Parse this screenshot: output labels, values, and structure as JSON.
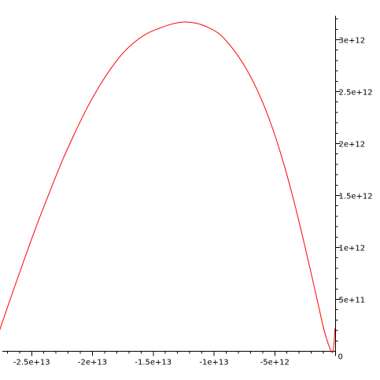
{
  "chart_data": {
    "type": "line",
    "title": "",
    "xlabel": "",
    "ylabel": "",
    "xlim": [
      -28600000000000.0,
      0
    ],
    "ylim": [
      0,
      3200000000000.0
    ],
    "grid": false,
    "legend": "none",
    "colors": {
      "curve": "#ff0000",
      "axis": "#000000"
    },
    "x_ticks": [
      {
        "value": -25000000000000.0,
        "label": "-2.5e+13"
      },
      {
        "value": -20000000000000.0,
        "label": "-2e+13"
      },
      {
        "value": -15000000000000.0,
        "label": "-1.5e+13"
      },
      {
        "value": -10000000000000.0,
        "label": "-1e+13"
      },
      {
        "value": -5000000000000.0,
        "label": "-5e+12"
      },
      {
        "value": 0,
        "label": "0"
      }
    ],
    "y_ticks": [
      {
        "value": 500000000000.0,
        "label": "5e+11"
      },
      {
        "value": 1000000000000.0,
        "label": "1e+12"
      },
      {
        "value": 1500000000000.0,
        "label": "1.5e+12"
      },
      {
        "value": 2000000000000.0,
        "label": "2e+12"
      },
      {
        "value": 2500000000000.0,
        "label": "2.5e+12"
      },
      {
        "value": 3000000000000.0,
        "label": "3e+12"
      }
    ],
    "series": [
      {
        "x": [
          -28200000000000.0,
          -27500000000000.0,
          -26500000000000.0,
          -25500000000000.0,
          -24500000000000.0,
          -23500000000000.0,
          -22500000000000.0,
          -21500000000000.0,
          -20500000000000.0,
          -19500000000000.0,
          -18500000000000.0,
          -17500000000000.0,
          -16500000000000.0,
          -15500000000000.0,
          -14500000000000.0,
          -13500000000000.0,
          -12500000000000.0,
          -11500000000000.0,
          -10500000000000.0,
          -9500000000000.0,
          -8500000000000.0,
          -7500000000000.0,
          -6500000000000.0,
          -5500000000000.0,
          -4500000000000.0,
          -3500000000000.0,
          -2500000000000.0,
          -1500000000000.0,
          -1000000000000.0,
          -500000000000.0,
          -200000000000.0,
          -50000000000.0
        ],
        "y": [
          0,
          250000000000.0,
          590000000000.0,
          920000000000.0,
          1240000000000.0,
          1540000000000.0,
          1830000000000.0,
          2090000000000.0,
          2330000000000.0,
          2540000000000.0,
          2720000000000.0,
          2870000000000.0,
          2980000000000.0,
          3060000000000.0,
          3110000000000.0,
          3150000000000.0,
          3170000000000.0,
          3160000000000.0,
          3120000000000.0,
          3050000000000.0,
          2920000000000.0,
          2750000000000.0,
          2530000000000.0,
          2250000000000.0,
          1900000000000.0,
          1480000000000.0,
          1000000000000.0,
          490000000000.0,
          230000000000.0,
          40000000000.0,
          0,
          220000000000.0
        ]
      }
    ]
  }
}
